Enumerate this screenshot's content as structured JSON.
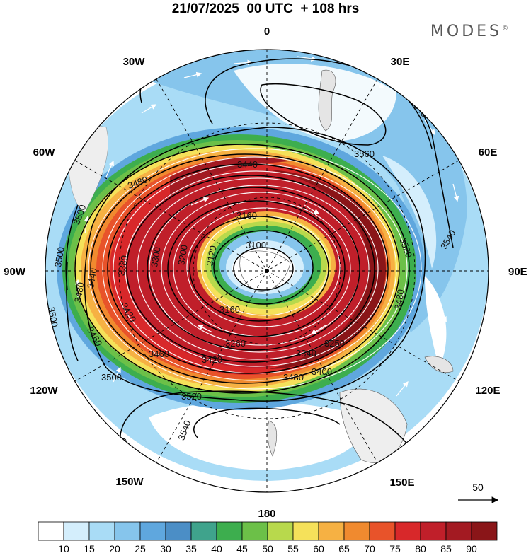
{
  "title": "21/07/2025  00 UTC  + 108 hrs",
  "brand": "MODES",
  "brand_mark": "©",
  "longitude_labels": {
    "top": "0",
    "right_top": "30E",
    "right_upper": "60E",
    "right": "90E",
    "right_lower": "120E",
    "right_bottom": "150E",
    "bottom": "180",
    "left_bottom": "150W",
    "left_lower": "120W",
    "left": "90W",
    "left_upper": "60W",
    "left_top": "30W"
  },
  "contour_labels": [
    "3100",
    "3160",
    "3160",
    "3120",
    "3200",
    "3260",
    "3300",
    "3340",
    "3380",
    "3420",
    "3440",
    "3440",
    "3460",
    "3460",
    "3480",
    "3480",
    "3480",
    "3480",
    "3500",
    "3500",
    "3500",
    "3500",
    "3520",
    "3520",
    "3520",
    "3540",
    "3540",
    "3540",
    "3560",
    "3250",
    "3400",
    "3420"
  ],
  "vector_reference": {
    "value": "50"
  },
  "colorbar": {
    "ticks": [
      "10",
      "15",
      "20",
      "25",
      "30",
      "35",
      "40",
      "45",
      "50",
      "55",
      "60",
      "65",
      "70",
      "75",
      "80",
      "85",
      "90"
    ],
    "colors": [
      "#ffffff",
      "#d4eefc",
      "#a9dcf6",
      "#86c5ec",
      "#5fa7de",
      "#4b8ec6",
      "#3fa38c",
      "#3dae4e",
      "#6cc048",
      "#b8d94c",
      "#f5e15a",
      "#f6b143",
      "#f08a2f",
      "#e8532a",
      "#d8282a",
      "#c01f2a",
      "#a31a22",
      "#8a1518"
    ]
  }
}
